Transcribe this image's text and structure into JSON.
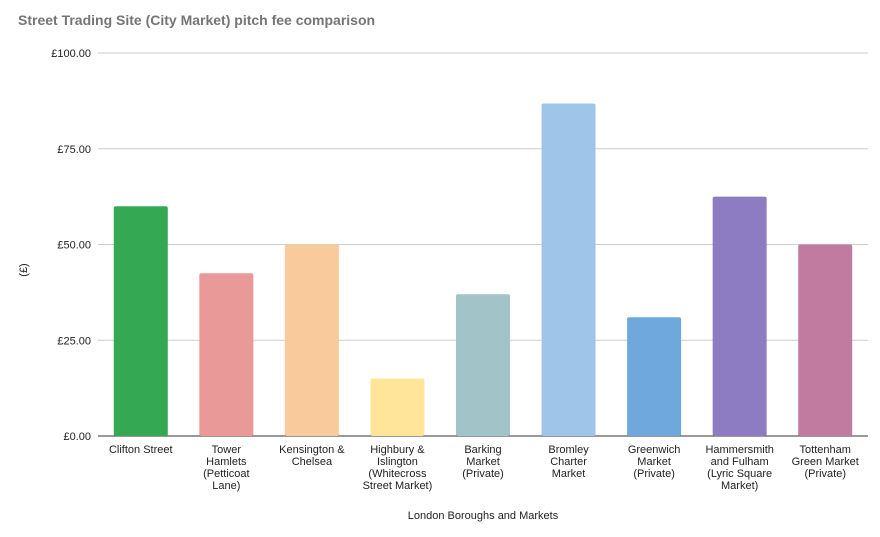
{
  "chart_data": {
    "type": "bar",
    "title": "Street Trading Site (City Market) pitch fee comparison",
    "xlabel": "London Boroughs and Markets",
    "ylabel": "(£)",
    "ylim": [
      0,
      100
    ],
    "yticks": [
      "£0.00",
      "£25.00",
      "£50.00",
      "£75.00",
      "£100.00"
    ],
    "ytick_values": [
      0,
      25,
      50,
      75,
      100
    ],
    "grid": true,
    "legend": "none",
    "categories": [
      [
        "Clifton Street"
      ],
      [
        "Tower",
        "Hamlets",
        "(Petticoat",
        "Lane)"
      ],
      [
        "Kensington &",
        "Chelsea"
      ],
      [
        "Highbury &",
        "Islington",
        "(Whitecross",
        "Street Market)"
      ],
      [
        "Barking",
        "Market",
        "(Private)"
      ],
      [
        "Bromley",
        "Charter",
        "Market"
      ],
      [
        "Greenwich",
        "Market",
        "(Private)"
      ],
      [
        "Hammersmith",
        "and Fulham",
        "(Lyric Square",
        "Market)"
      ],
      [
        "Tottenham",
        "Green Market",
        "(Private)"
      ]
    ],
    "values": [
      60,
      42.5,
      50,
      15,
      37,
      86.8,
      31,
      62.5,
      50
    ],
    "colors": [
      "#34a853",
      "#ea9999",
      "#f9cb9c",
      "#ffe599",
      "#a2c4c9",
      "#9fc5e8",
      "#6fa8dc",
      "#8e7cc3",
      "#c27ba0"
    ]
  }
}
